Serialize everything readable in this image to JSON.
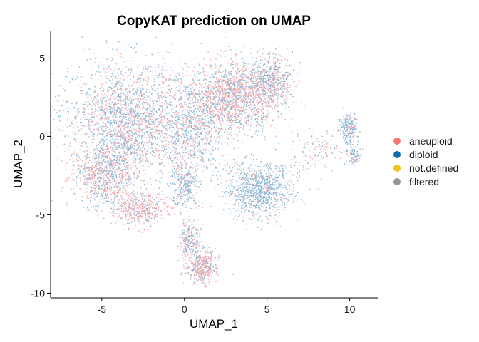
{
  "chart_data": {
    "type": "scatter",
    "title": "CopyKAT prediction on UMAP",
    "xlabel": "UMAP_1",
    "ylabel": "UMAP_2",
    "xlim": [
      -8.1,
      11.7
    ],
    "ylim": [
      -10.3,
      6.7
    ],
    "x_ticks": [
      -5,
      0,
      5,
      10
    ],
    "y_ticks": [
      -10,
      -5,
      0,
      5
    ],
    "x_tick_labels": [
      "-5",
      "0",
      "5",
      "10"
    ],
    "y_tick_labels": [
      "-10",
      "-5",
      "0",
      "5"
    ],
    "grid": false,
    "legend_position": "right",
    "series": [
      {
        "name": "aneuploid",
        "color": "#F8766D"
      },
      {
        "name": "diploid",
        "color": "#0C6EAD"
      },
      {
        "name": "not.defined",
        "color": "#F2C01B"
      },
      {
        "name": "filtered",
        "color": "#949494"
      }
    ],
    "point_colors": {
      "aneuploid": "#F0A8AC",
      "diploid": "#86B7D7"
    },
    "clusters": [
      {
        "cx": -3.5,
        "cy": 1.0,
        "sx": 2.3,
        "sy": 2.4,
        "n": 2600,
        "p_aneuploid": 0.45
      },
      {
        "cx": -4.8,
        "cy": -2.5,
        "sx": 1.3,
        "sy": 1.4,
        "n": 900,
        "p_aneuploid": 0.55
      },
      {
        "cx": -2.7,
        "cy": -4.6,
        "sx": 1.1,
        "sy": 0.7,
        "n": 500,
        "p_aneuploid": 0.8
      },
      {
        "cx": 0.5,
        "cy": 0.5,
        "sx": 1.2,
        "sy": 2.2,
        "n": 900,
        "p_aneuploid": 0.35
      },
      {
        "cx": 3.0,
        "cy": 2.6,
        "sx": 1.7,
        "sy": 1.5,
        "n": 1800,
        "p_aneuploid": 0.62
      },
      {
        "cx": 5.2,
        "cy": 3.6,
        "sx": 0.9,
        "sy": 1.0,
        "n": 600,
        "p_aneuploid": 0.45
      },
      {
        "cx": 4.5,
        "cy": -3.4,
        "sx": 1.3,
        "sy": 1.2,
        "n": 1100,
        "p_aneuploid": 0.18
      },
      {
        "cx": 0.0,
        "cy": -3.2,
        "sx": 0.6,
        "sy": 1.0,
        "n": 300,
        "p_aneuploid": 0.3
      },
      {
        "cx": 1.0,
        "cy": -8.3,
        "sx": 0.6,
        "sy": 0.7,
        "n": 500,
        "p_aneuploid": 0.7
      },
      {
        "cx": 0.3,
        "cy": -6.5,
        "sx": 0.4,
        "sy": 0.9,
        "n": 250,
        "p_aneuploid": 0.4
      },
      {
        "cx": 9.9,
        "cy": 0.5,
        "sx": 0.35,
        "sy": 0.6,
        "n": 220,
        "p_aneuploid": 0.2
      },
      {
        "cx": 10.2,
        "cy": -1.2,
        "sx": 0.3,
        "sy": 0.4,
        "n": 110,
        "p_aneuploid": 0.2
      },
      {
        "cx": 8.0,
        "cy": -0.8,
        "sx": 1.2,
        "sy": 1.0,
        "n": 150,
        "p_aneuploid": 0.55
      }
    ]
  }
}
